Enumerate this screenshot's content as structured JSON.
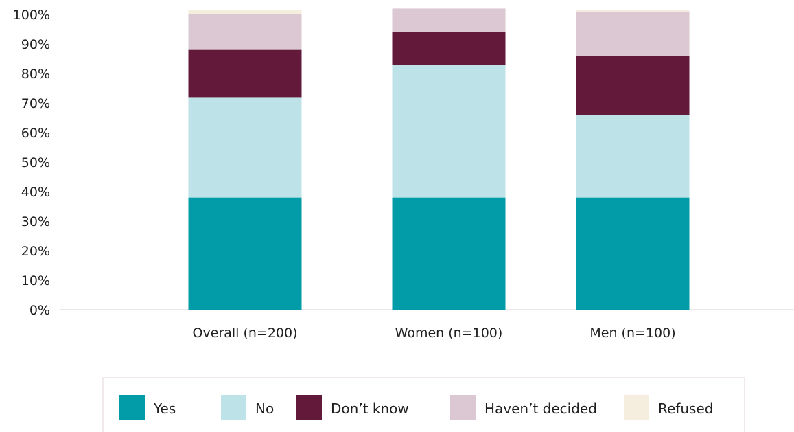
{
  "chart_data": {
    "type": "bar",
    "stacked": true,
    "categories": [
      "Overall (n=200)",
      "Women (n=100)",
      "Men (n=100)"
    ],
    "series": [
      {
        "name": "Yes",
        "color": "#019ca8",
        "values": [
          38,
          38,
          38
        ]
      },
      {
        "name": "No",
        "color": "#bde2e8",
        "values": [
          34,
          45,
          28
        ]
      },
      {
        "name": "Don’t know",
        "color": "#631a3a",
        "values": [
          16,
          11,
          20
        ]
      },
      {
        "name": "Haven’t decided",
        "color": "#dbc8d2",
        "values": [
          12,
          8,
          15
        ]
      },
      {
        "name": "Refused",
        "color": "#f5eedf",
        "values": [
          1.5,
          0,
          0.5
        ]
      }
    ],
    "yticks": [
      "0%",
      "10%",
      "20%",
      "30%",
      "40%",
      "50%",
      "60%",
      "70%",
      "80%",
      "90%",
      "100%"
    ],
    "ylim": [
      0,
      100
    ],
    "title": "",
    "xlabel": "",
    "ylabel": "",
    "grid": false,
    "legend_position": "bottom"
  }
}
